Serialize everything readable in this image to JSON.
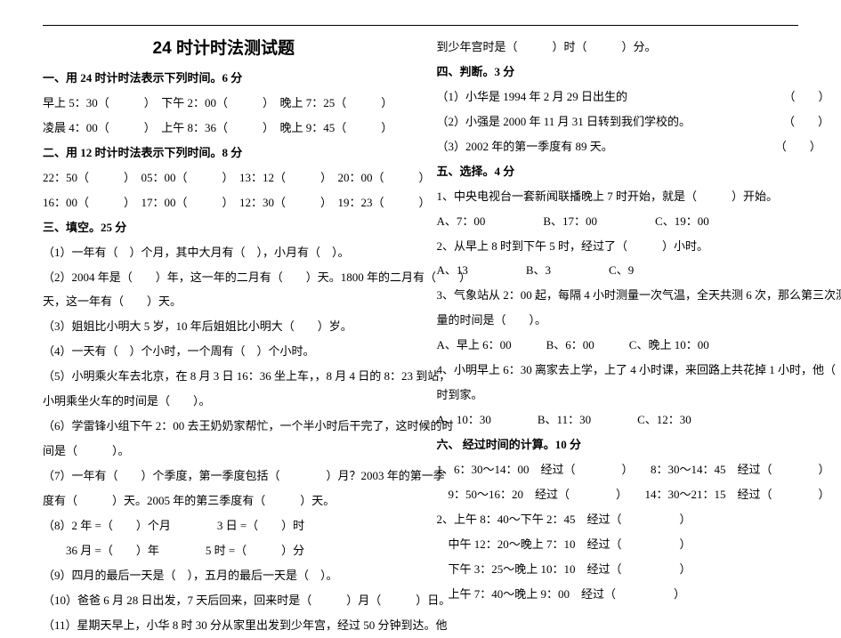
{
  "title": "24 时计时法测试题",
  "left": {
    "s1_head": "一、用 24 时计时法表示下列时间。6 分",
    "s1_l1": "早上 5：30（　　　）　下午 2：00（　　　）　晚上 7：25（　　　）",
    "s1_l2": "凌晨 4：00（　　　）　上午 8：36（　　　）　晚上 9：45（　　　）",
    "s2_head": "二、用 12 时计时法表示下列时间。8 分",
    "s2_l1": "22：50（　　　）　05：00（　　　）　13：12（　　　）　20：00（　　　）",
    "s2_l2": "16：00（　　　）　17：00（　　　）　12：30（　　　）　19：23（　　　）",
    "s3_head": "三、填空。25 分",
    "s3_1": "（1）一年有（　）个月，其中大月有（　），小月有（　）。",
    "s3_2a": "（2）2004 年是（　　）年，这一年的二月有（　　）天。1800 年的二月有（　　）",
    "s3_2b": "天，这一年有（　　）天。",
    "s3_3": "（3）姐姐比小明大 5 岁，10 年后姐姐比小明大（　　）岁。",
    "s3_4": "（4）一天有（　）个小时，一个周有（　）个小时。",
    "s3_5a": "（5）小明乘火车去北京，在 8 月 3 日 16：36 坐上车，，8 月 4 日的 8：23 到站，",
    "s3_5b": "小明乘坐火车的时间是（　　）。",
    "s3_6a": "（6）学雷锋小组下午 2：00 去王奶奶家帮忙，一个半小时后干完了，这时候的时",
    "s3_6b": "间是（　　　）。",
    "s3_7a": "（7）一年有（　　）个季度，第一季度包括（　　　　）月？2003 年的第一季",
    "s3_7b": "度有（　　　）天。2005 年的第三季度有（　　　）天。",
    "s3_8a": "（8）2 年 =（　　）个月　　　　3 日 =（　　）时",
    "s3_8b": "　　36 月 =（　　）年　　　　5 时 =（　　　）分",
    "s3_9": "（9）四月的最后一天是（　），五月的最后一天是（　）。",
    "s3_10": "（10）爸爸 6 月 28 日出发，7 天后回来，回来时是（　　　）月（　　　）日。",
    "s3_11a": "（11）星期天早上，小华 8 时 30 分从家里出发到少年宫，经过 50 分钟到达。他"
  },
  "right": {
    "s3_11b": "到少年宫时是（　　　）时（　　　）分。",
    "s4_head": "四、判断。3 分",
    "s4_1": "（1）小华是 1994 年 2 月 29 日出生的　　　　　　　　　　　　　　（　　）",
    "s4_2": "（2）小强是 2000 年 11 月 31 日转到我们学校的。　　　　　　　　　（　　）",
    "s4_3": "（3）2002 年的第一季度有 89 天。　　　　　　　　　　　　　　　（　　）",
    "s5_head": "五、选择。4 分",
    "s5_1a": "1、中央电视台一套新闻联播晚上 7 时开始，就是（　　　）开始。",
    "s5_1b": "A、7：00　　　　　B、17：00　　　　　C、19：00",
    "s5_2a": "2、从早上 8 时到下午 5 时，经过了（　　　）小时。",
    "s5_2b": "A、13　　　　　B、3　　　　　C、9",
    "s5_3a": "3、气象站从 2：00 起，每隔 4 小时测量一次气温，全天共测 6 次，那么第三次测",
    "s5_3b": "量的时间是（　　）。",
    "s5_3c": "A、早上 6：00　　　B、6：00　　　C、晚上 10：00",
    "s5_4a": "4、小明早上 6：30 离家去上学，上了 4 小时课，来回路上共花掉 1 小时，他（　　）",
    "s5_4b": "时到家。",
    "s5_4c": "A、10：30　　　　B、11：30　　　　C、12：30",
    "s6_head": "六、 经过时间的计算。10 分",
    "s6_1a": "1、6：30～14：00　经过（　　　　）　　8：30～14：45　经过（　　　　）",
    "s6_1b": "　9：50～16：20　经过（　　　　）　　14：30～21：15　经过（　　　　）",
    "s6_2a": "2、上午 8：40～下午 2：45　经过（　　　　　）",
    "s6_2b": "　中午 12：20～晚上 7：10　经过（　　　　　）",
    "s6_2c": "　下午 3：25～晚上 10：10　经过（　　　　　）",
    "s6_2d": "　上午 7：40～晚上 9：00　经过（　　　　　）"
  }
}
